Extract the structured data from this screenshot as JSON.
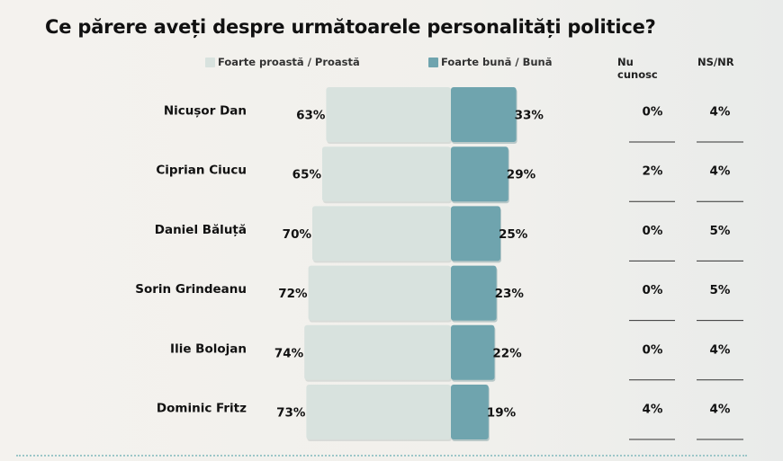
{
  "title": "Ce părere aveți despre următoarele personalități politice?",
  "legend": [
    {
      "label": "Foarte proastă / Proastă",
      "color": "#d8e2de"
    },
    {
      "label": "Foarte bună / Bună",
      "color": "#6fa4ae"
    }
  ],
  "columns": {
    "nu_cunosc": "Nu cunosc",
    "ns_nr": "NS/NR"
  },
  "chart_data": {
    "type": "bar",
    "title": "Ce părere aveți despre următoarele personalități politice?",
    "categories": [
      "Nicușor Dan",
      "Ciprian Ciucu",
      "Daniel Băluță",
      "Sorin Grindeanu",
      "Ilie Bolojan",
      "Dominic Fritz"
    ],
    "series": [
      {
        "name": "Foarte proastă / Proastă",
        "values": [
          63,
          65,
          70,
          72,
          74,
          73
        ],
        "labels": [
          "63%",
          "65%",
          "70%",
          "72%",
          "74%",
          "73%"
        ]
      },
      {
        "name": "Foarte bună / Bună",
        "values": [
          33,
          29,
          25,
          23,
          22,
          19
        ],
        "labels": [
          "33%",
          "29%",
          "25%",
          "23%",
          "22%",
          "19%"
        ]
      },
      {
        "name": "Nu cunosc",
        "values": [
          0,
          2,
          0,
          0,
          0,
          4
        ],
        "labels": [
          "0%",
          "2%",
          "0%",
          "0%",
          "0%",
          "4%"
        ]
      },
      {
        "name": "NS/NR",
        "values": [
          4,
          4,
          5,
          5,
          4,
          4
        ],
        "labels": [
          "4%",
          "4%",
          "5%",
          "5%",
          "4%",
          "4%"
        ]
      }
    ],
    "unit": "%",
    "legend_position": "top",
    "grid": false
  }
}
